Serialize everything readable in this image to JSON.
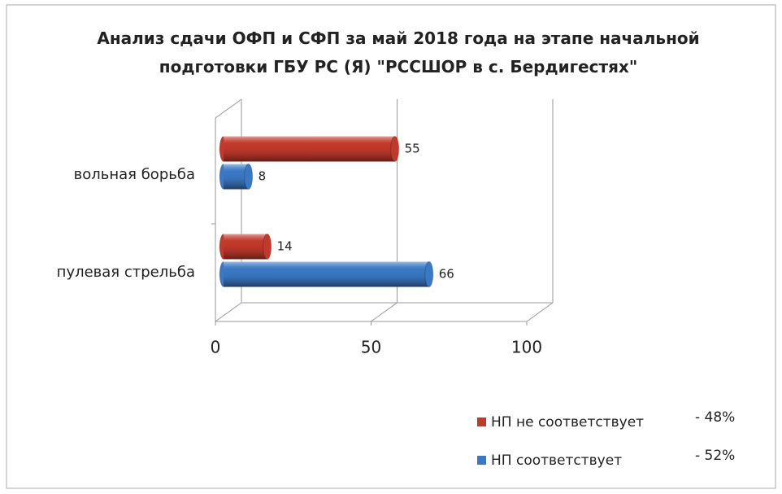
{
  "chart_data": {
    "type": "bar3d_horizontal",
    "title": "Анализ сдачи ОФП и СФП за май 2018 года на этапе начальной подготовки ГБУ РС (Я) \"РССШОР в с. Бердигестях\"",
    "categories": [
      "вольная борьба",
      "пулевая стрельба"
    ],
    "series": [
      {
        "name": "НП не соответствует",
        "color": "#c0392b",
        "values": [
          55,
          14
        ],
        "annotation": "- 48%"
      },
      {
        "name": "НП соответствует",
        "color": "#3a78c3",
        "values": [
          8,
          66
        ],
        "annotation": "- 52%"
      }
    ],
    "xlim": [
      0,
      100
    ],
    "xticks": [
      0,
      50,
      100
    ],
    "grid": true,
    "legend": "bottom-right"
  }
}
